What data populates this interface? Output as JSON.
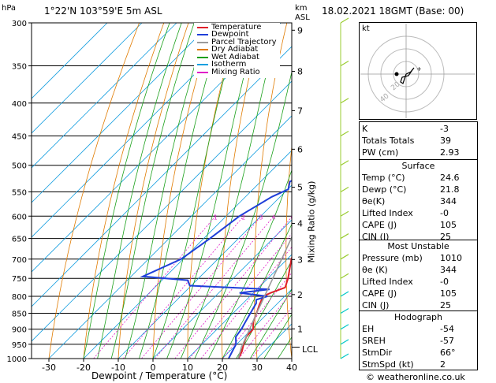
{
  "header": {
    "location": "1°22'N  103°59'E  5m  ASL",
    "datetime": "18.02.2021  18GMT  (Base: 00)",
    "hpa_unit": "hPa",
    "km_unit": "km",
    "asl_unit": "ASL"
  },
  "footer": {
    "x_axis_title": "Dewpoint / Temperature (°C)",
    "credit": "© weatheronline.co.uk"
  },
  "chart_data": {
    "type": "line",
    "title": "",
    "xlabel": "Dewpoint / Temperature (°C)",
    "ylabel": "hPa",
    "xlim": [
      -35,
      40
    ],
    "ylim": [
      1000,
      300
    ],
    "y_scale": "log",
    "grid": true,
    "legend_position": "top-left",
    "x_ticks": [
      "-30",
      "-20",
      "-10",
      "0",
      "10",
      "20",
      "30",
      "40"
    ],
    "y_ticks": [
      "300",
      "350",
      "400",
      "450",
      "500",
      "550",
      "600",
      "650",
      "700",
      "750",
      "800",
      "850",
      "900",
      "950",
      "1000"
    ],
    "km_ticks": [
      {
        "km": "1",
        "p": 899
      },
      {
        "km": "2",
        "p": 795
      },
      {
        "km": "3",
        "p": 701
      },
      {
        "km": "4",
        "p": 616
      },
      {
        "km": "5",
        "p": 541
      },
      {
        "km": "6",
        "p": 472
      },
      {
        "km": "7",
        "p": 411
      },
      {
        "km": "8",
        "p": 357
      },
      {
        "km": "9",
        "p": 308
      }
    ],
    "lcl_label": "LCL",
    "lcl_p": 960,
    "mixing_ratio_label": "Mixing Ratio (g/kg)",
    "mixing_ratio_values": [
      "1",
      "2",
      "3",
      "4",
      "6",
      "8",
      "10",
      "15",
      "20",
      "25"
    ],
    "legend": [
      {
        "name": "Temperature",
        "color": "#e0202a"
      },
      {
        "name": "Dewpoint",
        "color": "#1f3fd9"
      },
      {
        "name": "Parcel Trajectory",
        "color": "#9a9a9a"
      },
      {
        "name": "Dry Adiabat",
        "color": "#e07b00"
      },
      {
        "name": "Wet Adiabat",
        "color": "#1aa01a"
      },
      {
        "name": "Isotherm",
        "color": "#19a0e0"
      },
      {
        "name": "Mixing Ratio",
        "color": "#e020c8"
      }
    ],
    "series": [
      {
        "name": "Temperature",
        "color": "#e0202a",
        "points": [
          [
            1000,
            24.6
          ],
          [
            975,
            23.6
          ],
          [
            950,
            22.0
          ],
          [
            925,
            20.6
          ],
          [
            900,
            20.4
          ],
          [
            875,
            18.2
          ],
          [
            850,
            16.8
          ],
          [
            825,
            15.2
          ],
          [
            800,
            13.8
          ],
          [
            790,
            15.0
          ],
          [
            775,
            17.6
          ],
          [
            750,
            15.8
          ],
          [
            700,
            11.2
          ],
          [
            650,
            7.6
          ],
          [
            600,
            4.2
          ],
          [
            550,
            0.6
          ],
          [
            500,
            -4.0
          ],
          [
            450,
            -9.6
          ],
          [
            425,
            -12.0
          ],
          [
            410,
            -13.2
          ],
          [
            400,
            -14.6
          ],
          [
            375,
            -18.2
          ],
          [
            350,
            -22.2
          ],
          [
            325,
            -26.0
          ],
          [
            300,
            -29.8
          ]
        ]
      },
      {
        "name": "Dewpoint",
        "color": "#1f3fd9",
        "points": [
          [
            1000,
            21.8
          ],
          [
            975,
            20.8
          ],
          [
            950,
            19.8
          ],
          [
            925,
            17.6
          ],
          [
            900,
            17.0
          ],
          [
            875,
            16.0
          ],
          [
            850,
            15.0
          ],
          [
            820,
            13.8
          ],
          [
            810,
            12.8
          ],
          [
            800,
            15.0
          ],
          [
            790,
            6.0
          ],
          [
            780,
            13.6
          ],
          [
            770,
            -10.4
          ],
          [
            755,
            -12.6
          ],
          [
            745,
            -26.6
          ],
          [
            700,
            -20.6
          ],
          [
            650,
            -18.2
          ],
          [
            600,
            -16.2
          ],
          [
            560,
            -12.4
          ],
          [
            545,
            -9.8
          ],
          [
            530,
            -11.6
          ],
          [
            500,
            -5.6
          ],
          [
            475,
            -4.6
          ],
          [
            450,
            -5.0
          ],
          [
            425,
            -9.0
          ],
          [
            405,
            -18.2
          ],
          [
            375,
            -24.2
          ],
          [
            350,
            -24.0
          ],
          [
            325,
            -15.8
          ],
          [
            320,
            -11.6
          ],
          [
            305,
            -9.4
          ],
          [
            300,
            -9.6
          ]
        ]
      },
      {
        "name": "Parcel Trajectory",
        "color": "#9a9a9a",
        "points": [
          [
            1000,
            24.6
          ],
          [
            960,
            22.2
          ],
          [
            900,
            19.4
          ],
          [
            850,
            16.8
          ],
          [
            800,
            14.2
          ],
          [
            750,
            11.4
          ],
          [
            700,
            8.4
          ],
          [
            650,
            5.2
          ],
          [
            600,
            1.6
          ],
          [
            550,
            -2.4
          ],
          [
            500,
            -7.2
          ],
          [
            450,
            -12.8
          ],
          [
            400,
            -19.4
          ],
          [
            350,
            -27.6
          ],
          [
            300,
            -37.4
          ]
        ]
      }
    ]
  },
  "indices": {
    "rows": [
      {
        "label": "K",
        "value": "-3"
      },
      {
        "label": "Totals Totals",
        "value": "39"
      },
      {
        "label": "PW (cm)",
        "value": "2.93"
      }
    ],
    "surface": {
      "title": "Surface",
      "rows": [
        {
          "label": "Temp (°C)",
          "value": "24.6"
        },
        {
          "label": "Dewp (°C)",
          "value": "21.8"
        },
        {
          "label": "θe(K)",
          "value": "344"
        },
        {
          "label": "Lifted Index",
          "value": "-0"
        },
        {
          "label": "CAPE (J)",
          "value": "105"
        },
        {
          "label": "CIN (J)",
          "value": "25"
        }
      ]
    },
    "most_unstable": {
      "title": "Most Unstable",
      "rows": [
        {
          "label": "Pressure (mb)",
          "value": "1010"
        },
        {
          "label": "θe (K)",
          "value": "344"
        },
        {
          "label": "Lifted Index",
          "value": "-0"
        },
        {
          "label": "CAPE (J)",
          "value": "105"
        },
        {
          "label": "CIN (J)",
          "value": "25"
        }
      ]
    },
    "hodograph": {
      "title": "Hodograph",
      "rows": [
        {
          "label": "EH",
          "value": "-54"
        },
        {
          "label": "SREH",
          "value": "-57"
        },
        {
          "label": "StmDir",
          "value": "66°"
        },
        {
          "label": "StmSpd (kt)",
          "value": "2"
        }
      ]
    }
  },
  "hodograph_plot": {
    "unit_label": "kt",
    "ring_labels": [
      "20",
      "40"
    ]
  },
  "wind_barbs_colors": {
    "upper": "#9acd32",
    "lower": "#00c8c8"
  }
}
